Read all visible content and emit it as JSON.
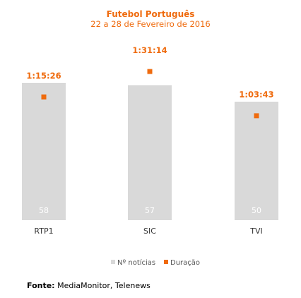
{
  "chart_data": {
    "type": "bar",
    "title": "Futebol Português",
    "subtitle": "22 a 28 de Fevereiro de 2016",
    "categories": [
      "RTP1",
      "SIC",
      "TVI"
    ],
    "series": [
      {
        "name": "Nº notícias",
        "values": [
          58,
          57,
          50
        ],
        "color": "#d9d9d9"
      },
      {
        "name": "Duração",
        "values": [
          "1:15:26",
          "1:31:14",
          "1:03:43"
        ],
        "seconds": [
          4526,
          5474,
          3823
        ],
        "color": "#ef6b0e"
      }
    ],
    "legend_position": "bottom",
    "grid": false
  },
  "footer": {
    "label": "Fonte:",
    "text": "MediaMonitor, Telenews"
  }
}
